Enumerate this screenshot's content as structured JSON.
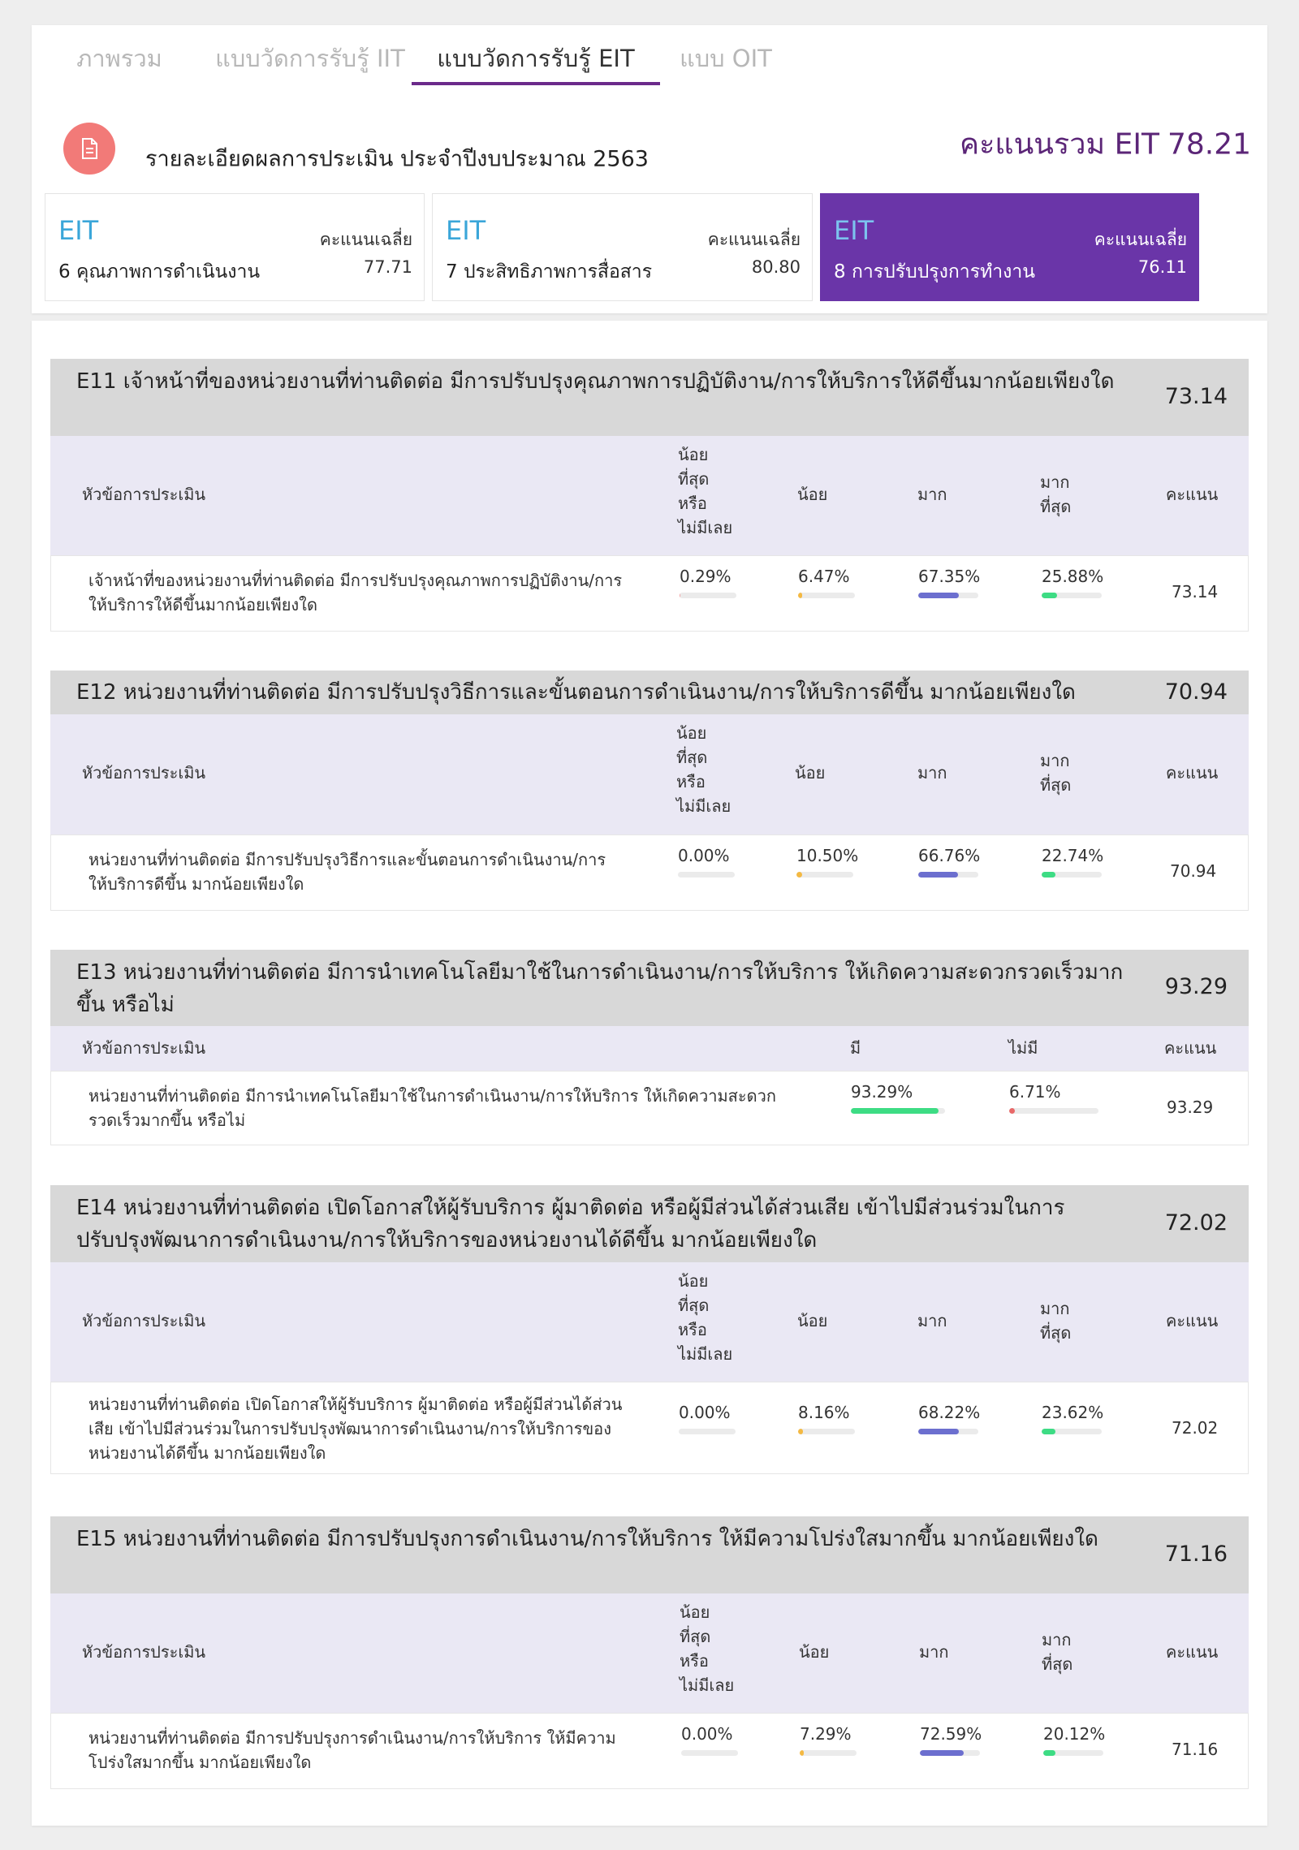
{
  "tabs": [
    {
      "label": "ภาพรวม",
      "active": false
    },
    {
      "label": "แบบวัดการรับรู้ IIT",
      "active": false
    },
    {
      "label": "แบบวัดการรับรู้ EIT",
      "active": true
    },
    {
      "label": "แบบ OIT",
      "active": false
    }
  ],
  "header": {
    "icon": "document-icon",
    "report_title": "รายละเอียดผลการประเมิน ประจำปีงบประมาณ 2563",
    "total_label": "คะแนนรวม EIT",
    "total_value": "78.21"
  },
  "score_cards": [
    {
      "eit": "EIT",
      "avg_label": "คะแนนเฉลี่ย",
      "name": "6 คุณภาพการดำเนินงาน",
      "value": "77.71",
      "active": false
    },
    {
      "eit": "EIT",
      "avg_label": "คะแนนเฉลี่ย",
      "name": "7 ประสิทธิภาพการสื่อสาร",
      "value": "80.80",
      "active": false
    },
    {
      "eit": "EIT",
      "avg_label": "คะแนนเฉลี่ย",
      "name": "8 การปรับปรุงการทำงาน",
      "value": "76.11",
      "active": true
    }
  ],
  "colors": {
    "least": "#f2a0a0",
    "little": "#f4b942",
    "much": "#6c6fcf",
    "most": "#3ddc84",
    "no": "#e86868",
    "accent": "#6a35a8"
  },
  "sections": [
    {
      "title": "E11 เจ้าหน้าที่ของหน่วยงานที่ท่านติดต่อ มีการปรับปรุงคุณภาพการปฏิบัติงาน/การให้บริการให้ดีขึ้นมากน้อยเพียงใด",
      "score": "73.14",
      "headers": {
        "topic": "หัวข้อการประเมิน",
        "least": "น้อย ที่สุด หรือ ไม่มีเลย",
        "little": "น้อย",
        "much": "มาก",
        "most": "มาก ที่สุด",
        "score": "คะแนน"
      },
      "row": {
        "text": "เจ้าหน้าที่ของหน่วยงานที่ท่านติดต่อ มีการปรับปรุงคุณภาพการปฏิบัติงาน/การให้บริการให้ดีขึ้นมากน้อยเพียงใด",
        "least": "0.29%",
        "little": "6.47%",
        "much": "67.35%",
        "most": "25.88%",
        "least_v": 0.29,
        "little_v": 6.47,
        "much_v": 67.35,
        "most_v": 25.88,
        "score": "73.14"
      }
    },
    {
      "title": "E12 หน่วยงานที่ท่านติดต่อ มีการปรับปรุงวิธีการและขั้นตอนการดำเนินงาน/การให้บริการดีขึ้น มากน้อยเพียงใด",
      "score": "70.94",
      "headers": {
        "topic": "หัวข้อการประเมิน",
        "least": "น้อย ที่สุด หรือ ไม่มีเลย",
        "little": "น้อย",
        "much": "มาก",
        "most": "มาก ที่สุด",
        "score": "คะแนน"
      },
      "row": {
        "text": "หน่วยงานที่ท่านติดต่อ มีการปรับปรุงวิธีการและขั้นตอนการดำเนินงาน/การให้บริการดีขึ้น มากน้อยเพียงใด",
        "least": "0.00%",
        "little": "10.50%",
        "much": "66.76%",
        "most": "22.74%",
        "least_v": 0,
        "little_v": 10.5,
        "much_v": 66.76,
        "most_v": 22.74,
        "score": "70.94"
      }
    },
    {
      "title": "E13 หน่วยงานที่ท่านติดต่อ มีการนำเทคโนโลยีมาใช้ในการดำเนินงาน/การให้บริการ ให้เกิดความสะดวกรวดเร็วมากขึ้น หรือไม่",
      "score": "93.29",
      "headers": {
        "topic": "หัวข้อการประเมิน",
        "yes": "มี",
        "no": "ไม่มี",
        "score": "คะแนน"
      },
      "row": {
        "text": "หน่วยงานที่ท่านติดต่อ มีการนำเทคโนโลยีมาใช้ในการดำเนินงาน/การให้บริการ ให้เกิดความสะดวกรวดเร็วมากขึ้น หรือไม่",
        "yes": "93.29%",
        "no": "6.71%",
        "yes_v": 93.29,
        "no_v": 6.71,
        "score": "93.29"
      }
    },
    {
      "title": "E14 หน่วยงานที่ท่านติดต่อ เปิดโอกาสให้ผู้รับบริการ ผู้มาติดต่อ หรือผู้มีส่วนได้ส่วนเสีย เข้าไปมีส่วนร่วมในการปรับปรุงพัฒนาการดำเนินงาน/การให้บริการของหน่วยงานได้ดีขึ้น มากน้อยเพียงใด",
      "score": "72.02",
      "headers": {
        "topic": "หัวข้อการประเมิน",
        "least": "น้อย ที่สุด หรือ ไม่มีเลย",
        "little": "น้อย",
        "much": "มาก",
        "most": "มาก ที่สุด",
        "score": "คะแนน"
      },
      "row": {
        "text": "หน่วยงานที่ท่านติดต่อ เปิดโอกาสให้ผู้รับบริการ ผู้มาติดต่อ หรือผู้มีส่วนได้ส่วนเสีย เข้าไปมีส่วนร่วมในการปรับปรุงพัฒนาการดำเนินงาน/การให้บริการของหน่วยงานได้ดีขึ้น มากน้อยเพียงใด",
        "least": "0.00%",
        "little": "8.16%",
        "much": "68.22%",
        "most": "23.62%",
        "least_v": 0,
        "little_v": 8.16,
        "much_v": 68.22,
        "most_v": 23.62,
        "score": "72.02"
      }
    },
    {
      "title": "E15 หน่วยงานที่ท่านติดต่อ มีการปรับปรุงการดำเนินงาน/การให้บริการ ให้มีความโปร่งใสมากขึ้น มากน้อยเพียงใด",
      "score": "71.16",
      "headers": {
        "topic": "หัวข้อการประเมิน",
        "least": "น้อย ที่สุด หรือ ไม่มีเลย",
        "little": "น้อย",
        "much": "มาก",
        "most": "มาก ที่สุด",
        "score": "คะแนน"
      },
      "row": {
        "text": "หน่วยงานที่ท่านติดต่อ มีการปรับปรุงการดำเนินงาน/การให้บริการ ให้มีความโปร่งใสมากขึ้น มากน้อยเพียงใด",
        "least": "0.00%",
        "little": "7.29%",
        "much": "72.59%",
        "most": "20.12%",
        "least_v": 0,
        "little_v": 7.29,
        "much_v": 72.59,
        "most_v": 20.12,
        "score": "71.16"
      }
    }
  ]
}
